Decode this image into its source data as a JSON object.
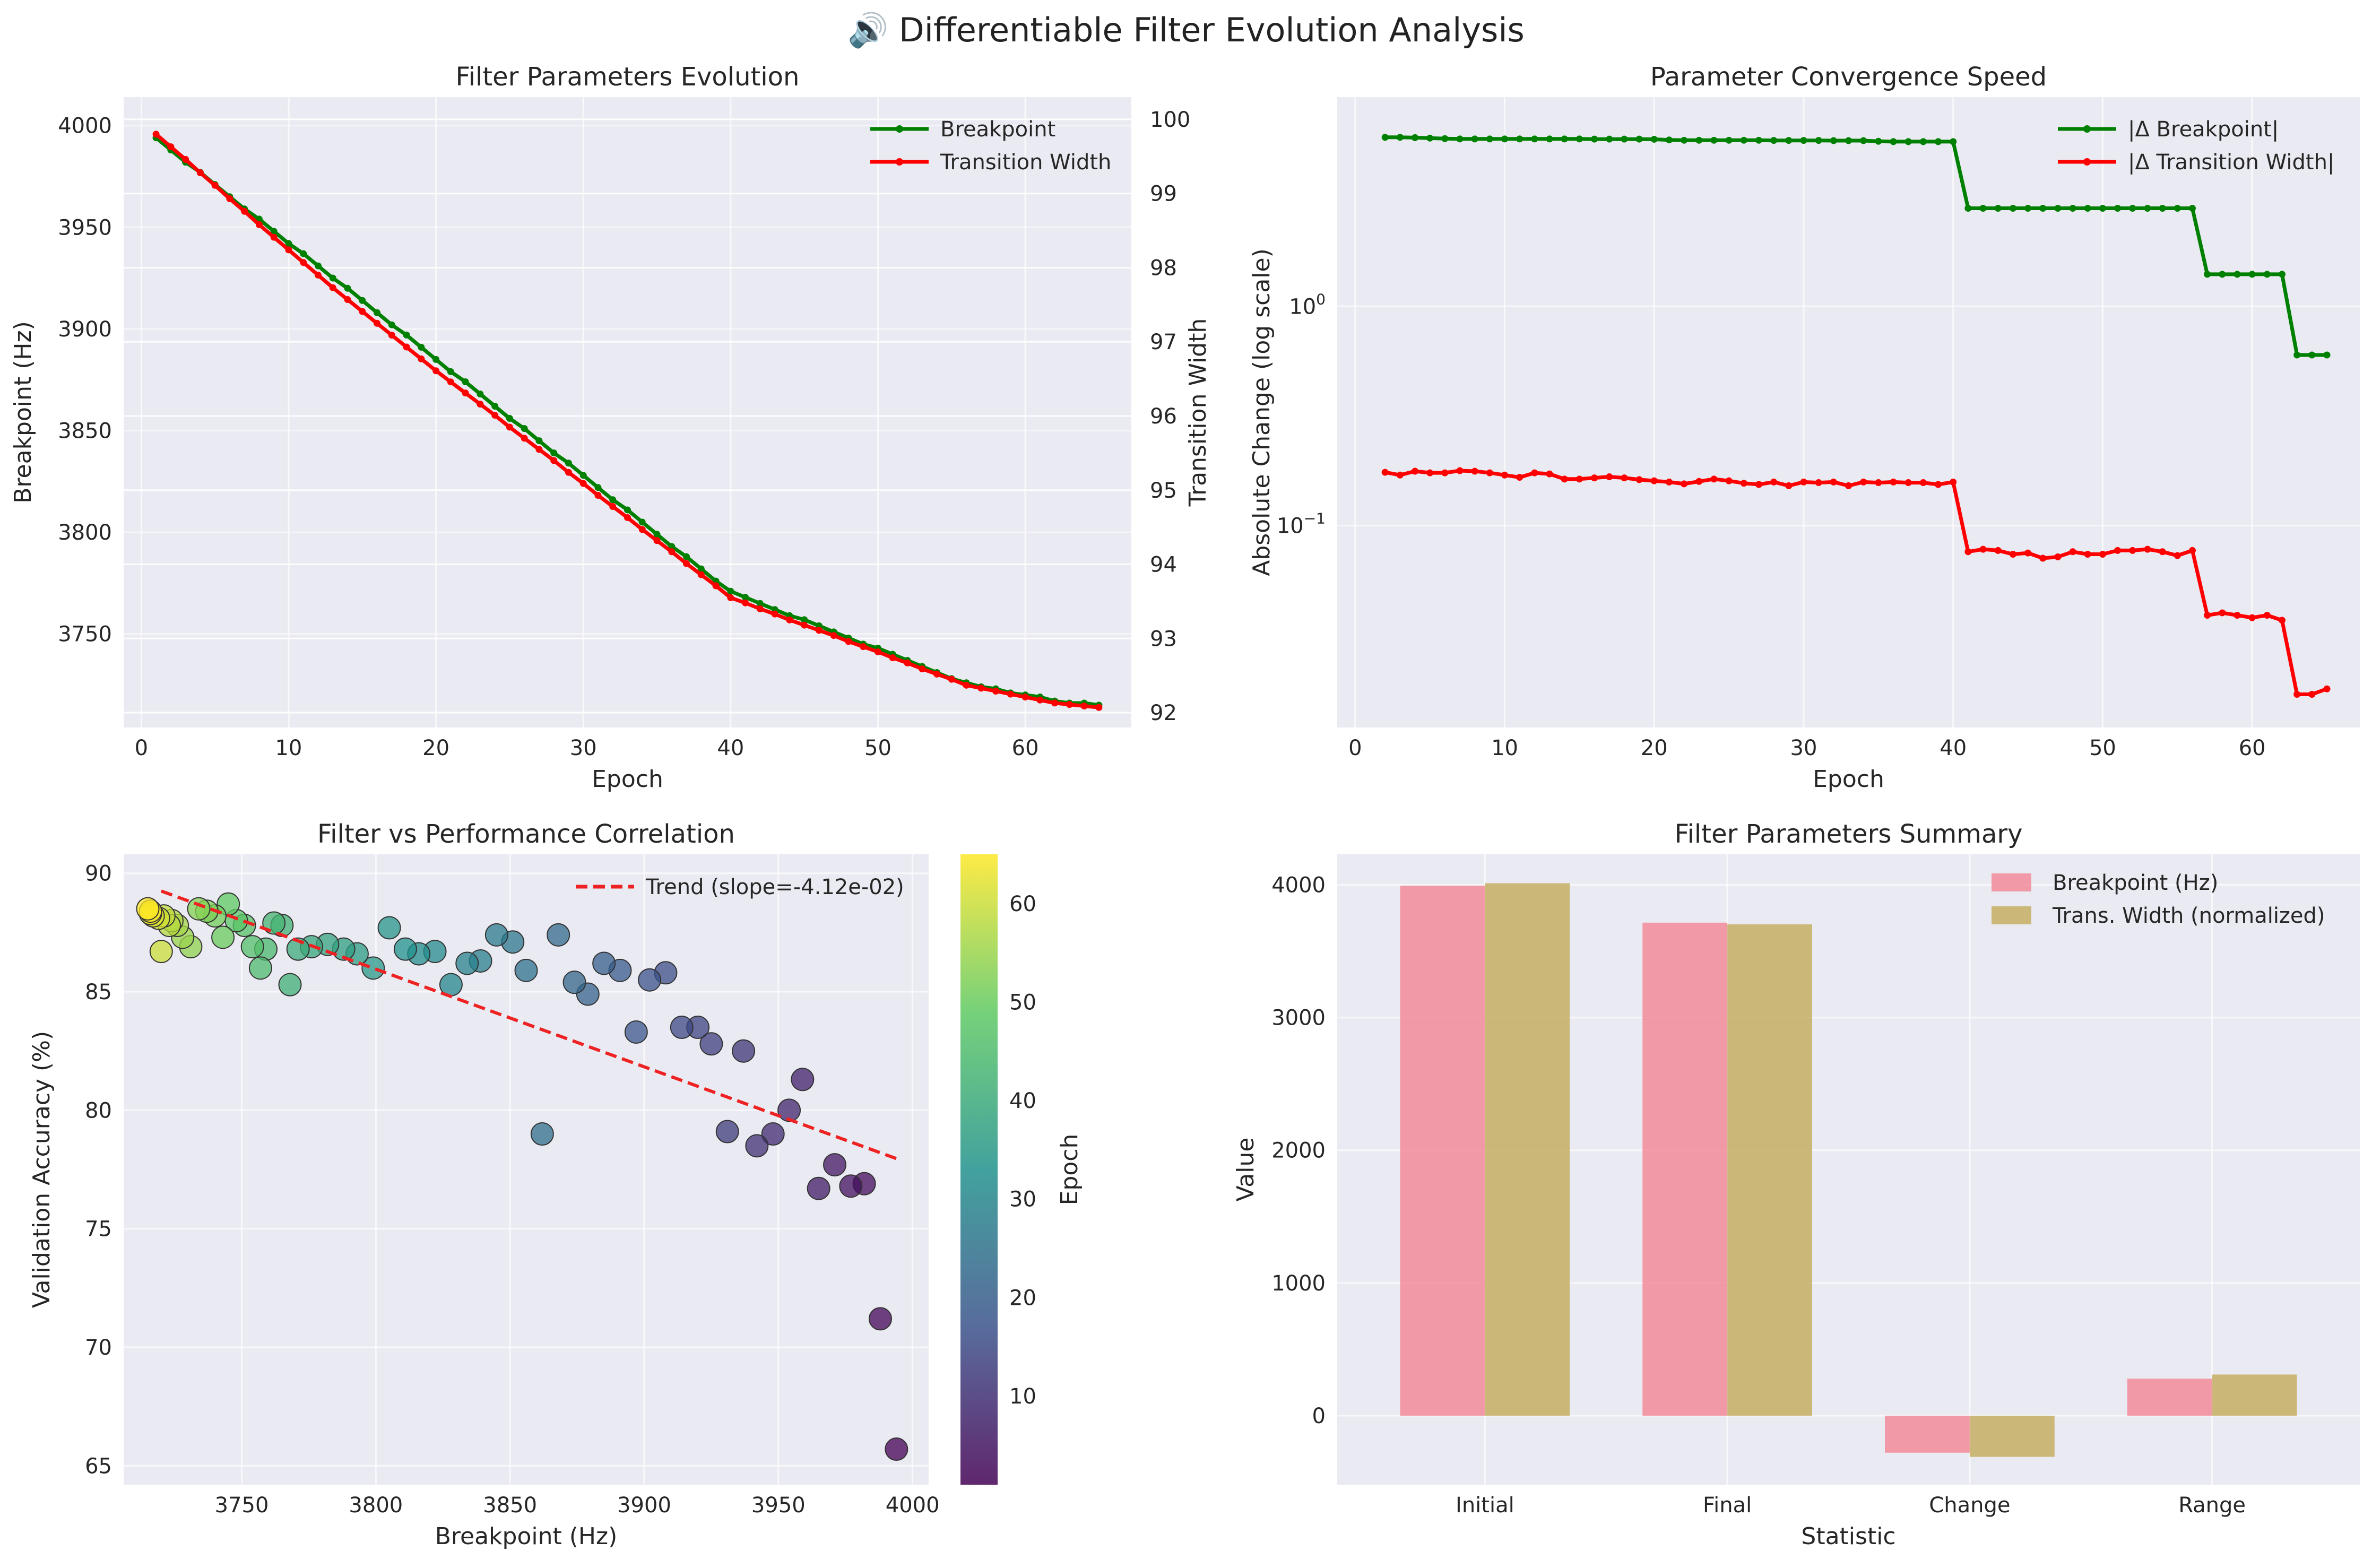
{
  "figure": {
    "title": "🔊 Differentiable Filter Evolution Analysis"
  },
  "chart_data": [
    {
      "id": "evolution",
      "type": "line",
      "title": "Filter Parameters Evolution",
      "xlabel": "Epoch",
      "ylabel": "Breakpoint (Hz)",
      "ylabel_right": "Transition Width",
      "xlim": [
        -1.2,
        67.2
      ],
      "ylim": [
        3704,
        4014
      ],
      "ylim_right": [
        91.8,
        100.3
      ],
      "xticks": [
        0,
        10,
        20,
        30,
        40,
        50,
        60
      ],
      "yticks": [
        3750,
        3800,
        3850,
        3900,
        3950,
        4000
      ],
      "yticks_right": [
        92,
        93,
        94,
        95,
        96,
        97,
        98,
        99,
        100
      ],
      "grid": true,
      "legend": "top-right",
      "series": [
        {
          "name": "Breakpoint",
          "axis": "left",
          "color": "#008000",
          "x": [
            1,
            2,
            3,
            4,
            5,
            6,
            7,
            8,
            9,
            10,
            11,
            12,
            13,
            14,
            15,
            16,
            17,
            18,
            19,
            20,
            21,
            22,
            23,
            24,
            25,
            26,
            27,
            28,
            29,
            30,
            31,
            32,
            33,
            34,
            35,
            36,
            37,
            38,
            39,
            40,
            41,
            42,
            43,
            44,
            45,
            46,
            47,
            48,
            49,
            50,
            51,
            52,
            53,
            54,
            55,
            56,
            57,
            58,
            59,
            60,
            61,
            62,
            63,
            64,
            65
          ],
          "values": [
            3994,
            3988,
            3982,
            3977,
            3971,
            3965,
            3959,
            3954,
            3948,
            3942,
            3937,
            3931,
            3925,
            3920,
            3914,
            3908,
            3902,
            3897,
            3891,
            3885,
            3879,
            3874,
            3868,
            3862,
            3856,
            3851,
            3845,
            3839,
            3834,
            3828,
            3822,
            3816,
            3811,
            3805,
            3799,
            3793,
            3788,
            3782,
            3776,
            3771,
            3768,
            3765,
            3762,
            3759,
            3757,
            3754,
            3751,
            3748,
            3745,
            3743,
            3740,
            3737,
            3734,
            3731,
            3728,
            3726,
            3724,
            3723,
            3721,
            3720,
            3719,
            3717,
            3716,
            3716,
            3715
          ]
        },
        {
          "name": "Transition Width",
          "axis": "right",
          "color": "#ff0000",
          "x": [
            1,
            2,
            3,
            4,
            5,
            6,
            7,
            8,
            9,
            10,
            11,
            12,
            13,
            14,
            15,
            16,
            17,
            18,
            19,
            20,
            21,
            22,
            23,
            24,
            25,
            26,
            27,
            28,
            29,
            30,
            31,
            32,
            33,
            34,
            35,
            36,
            37,
            38,
            39,
            40,
            41,
            42,
            43,
            44,
            45,
            46,
            47,
            48,
            49,
            50,
            51,
            52,
            53,
            54,
            55,
            56,
            57,
            58,
            59,
            60,
            61,
            62,
            63,
            64,
            65
          ],
          "values": [
            99.8,
            99.63,
            99.46,
            99.28,
            99.11,
            98.93,
            98.76,
            98.58,
            98.41,
            98.24,
            98.07,
            97.9,
            97.73,
            97.57,
            97.41,
            97.25,
            97.09,
            96.93,
            96.77,
            96.61,
            96.46,
            96.31,
            96.16,
            96.01,
            95.85,
            95.7,
            95.55,
            95.4,
            95.24,
            95.09,
            94.93,
            94.78,
            94.63,
            94.47,
            94.32,
            94.17,
            94.01,
            93.86,
            93.71,
            93.55,
            93.48,
            93.4,
            93.33,
            93.25,
            93.18,
            93.11,
            93.04,
            92.96,
            92.89,
            92.82,
            92.74,
            92.67,
            92.59,
            92.52,
            92.45,
            92.37,
            92.33,
            92.29,
            92.25,
            92.21,
            92.17,
            92.13,
            92.11,
            92.09,
            92.07
          ]
        }
      ]
    },
    {
      "id": "convergence",
      "type": "line",
      "title": "Parameter Convergence Speed",
      "xlabel": "Epoch",
      "ylabel": "Absolute Change (log scale)",
      "yscale": "log",
      "xlim": [
        -1.2,
        67.2
      ],
      "ylim": [
        0.012,
        9
      ],
      "xticks": [
        0,
        10,
        20,
        30,
        40,
        50,
        60
      ],
      "yticks": [
        {
          "value": 1,
          "base": "10",
          "exp": "0"
        },
        {
          "value": 0.1,
          "base": "10",
          "exp": "−1"
        }
      ],
      "grid": true,
      "legend": "top-right",
      "series": [
        {
          "name": "|Δ Breakpoint|",
          "color": "#008000",
          "x": [
            2,
            3,
            4,
            5,
            6,
            7,
            8,
            9,
            10,
            11,
            12,
            13,
            14,
            15,
            16,
            17,
            18,
            19,
            20,
            21,
            22,
            23,
            24,
            25,
            26,
            27,
            28,
            29,
            30,
            31,
            32,
            33,
            34,
            35,
            36,
            37,
            38,
            39,
            40,
            41,
            42,
            43,
            44,
            45,
            46,
            47,
            48,
            49,
            50,
            51,
            52,
            53,
            54,
            55,
            56,
            57,
            58,
            59,
            60,
            61,
            62,
            63,
            64,
            65
          ],
          "values": [
            5.9,
            5.9,
            5.88,
            5.85,
            5.82,
            5.8,
            5.8,
            5.8,
            5.8,
            5.8,
            5.8,
            5.8,
            5.8,
            5.8,
            5.79,
            5.79,
            5.79,
            5.79,
            5.78,
            5.74,
            5.72,
            5.72,
            5.72,
            5.72,
            5.72,
            5.72,
            5.71,
            5.71,
            5.71,
            5.71,
            5.7,
            5.7,
            5.7,
            5.66,
            5.64,
            5.64,
            5.64,
            5.64,
            5.64,
            2.8,
            2.8,
            2.8,
            2.8,
            2.8,
            2.8,
            2.8,
            2.8,
            2.8,
            2.8,
            2.8,
            2.8,
            2.8,
            2.8,
            2.8,
            2.8,
            1.4,
            1.4,
            1.4,
            1.4,
            1.4,
            1.4,
            0.6,
            0.6,
            0.6
          ]
        },
        {
          "name": "|Δ Transition Width|",
          "color": "#ff0000",
          "x": [
            2,
            3,
            4,
            5,
            6,
            7,
            8,
            9,
            10,
            11,
            12,
            13,
            14,
            15,
            16,
            17,
            18,
            19,
            20,
            21,
            22,
            23,
            24,
            25,
            26,
            27,
            28,
            29,
            30,
            31,
            32,
            33,
            34,
            35,
            36,
            37,
            38,
            39,
            40,
            41,
            42,
            43,
            44,
            45,
            46,
            47,
            48,
            49,
            50,
            51,
            52,
            53,
            54,
            55,
            56,
            57,
            58,
            59,
            60,
            61,
            62,
            63,
            64,
            65
          ],
          "values": [
            0.175,
            0.17,
            0.177,
            0.174,
            0.174,
            0.178,
            0.177,
            0.174,
            0.17,
            0.166,
            0.174,
            0.172,
            0.163,
            0.163,
            0.165,
            0.167,
            0.165,
            0.162,
            0.16,
            0.158,
            0.155,
            0.159,
            0.163,
            0.16,
            0.156,
            0.154,
            0.158,
            0.152,
            0.158,
            0.157,
            0.158,
            0.152,
            0.158,
            0.157,
            0.158,
            0.157,
            0.157,
            0.154,
            0.158,
            0.076,
            0.078,
            0.077,
            0.074,
            0.075,
            0.071,
            0.072,
            0.076,
            0.074,
            0.074,
            0.077,
            0.077,
            0.078,
            0.076,
            0.073,
            0.077,
            0.039,
            0.04,
            0.039,
            0.038,
            0.039,
            0.037,
            0.017,
            0.017,
            0.018
          ]
        }
      ]
    },
    {
      "id": "correlation",
      "type": "scatter",
      "title": "Filter vs Performance Correlation",
      "xlabel": "Breakpoint (Hz)",
      "ylabel": "Validation Accuracy (%)",
      "xlim": [
        3706,
        4006
      ],
      "ylim": [
        64.2,
        90.8
      ],
      "xticks": [
        3750,
        3800,
        3850,
        3900,
        3950,
        4000
      ],
      "yticks": [
        65,
        70,
        75,
        80,
        85,
        90
      ],
      "grid": true,
      "legend": "top-right",
      "colormap": "viridis",
      "colorbar": {
        "label": "Epoch",
        "range": [
          1,
          65
        ],
        "ticks": [
          10,
          20,
          30,
          40,
          50,
          60
        ]
      },
      "trend": {
        "name": "Trend (slope=-4.12e-02)",
        "color": "#ee2222",
        "x": [
          3720,
          3994
        ],
        "y": [
          89.25,
          77.96
        ]
      },
      "points": [
        {
          "x": 3994,
          "y": 65.7,
          "epoch": 1
        },
        {
          "x": 3988,
          "y": 71.2,
          "epoch": 2
        },
        {
          "x": 3982,
          "y": 76.9,
          "epoch": 3
        },
        {
          "x": 3977,
          "y": 76.8,
          "epoch": 4
        },
        {
          "x": 3971,
          "y": 77.7,
          "epoch": 5
        },
        {
          "x": 3965,
          "y": 76.7,
          "epoch": 6
        },
        {
          "x": 3959,
          "y": 81.3,
          "epoch": 7
        },
        {
          "x": 3954,
          "y": 80.0,
          "epoch": 8
        },
        {
          "x": 3948,
          "y": 79.0,
          "epoch": 9
        },
        {
          "x": 3942,
          "y": 78.5,
          "epoch": 10
        },
        {
          "x": 3937,
          "y": 82.5,
          "epoch": 11
        },
        {
          "x": 3931,
          "y": 79.1,
          "epoch": 12
        },
        {
          "x": 3925,
          "y": 82.8,
          "epoch": 13
        },
        {
          "x": 3920,
          "y": 83.5,
          "epoch": 14
        },
        {
          "x": 3914,
          "y": 83.5,
          "epoch": 15
        },
        {
          "x": 3908,
          "y": 85.8,
          "epoch": 16
        },
        {
          "x": 3902,
          "y": 85.5,
          "epoch": 17
        },
        {
          "x": 3897,
          "y": 83.3,
          "epoch": 18
        },
        {
          "x": 3891,
          "y": 85.9,
          "epoch": 19
        },
        {
          "x": 3885,
          "y": 86.2,
          "epoch": 20
        },
        {
          "x": 3879,
          "y": 84.9,
          "epoch": 21
        },
        {
          "x": 3874,
          "y": 85.4,
          "epoch": 22
        },
        {
          "x": 3868,
          "y": 87.4,
          "epoch": 23
        },
        {
          "x": 3862,
          "y": 79.0,
          "epoch": 24
        },
        {
          "x": 3856,
          "y": 85.9,
          "epoch": 25
        },
        {
          "x": 3851,
          "y": 87.1,
          "epoch": 26
        },
        {
          "x": 3845,
          "y": 87.4,
          "epoch": 27
        },
        {
          "x": 3839,
          "y": 86.3,
          "epoch": 28
        },
        {
          "x": 3834,
          "y": 86.2,
          "epoch": 29
        },
        {
          "x": 3828,
          "y": 85.3,
          "epoch": 30
        },
        {
          "x": 3822,
          "y": 86.7,
          "epoch": 31
        },
        {
          "x": 3816,
          "y": 86.6,
          "epoch": 32
        },
        {
          "x": 3811,
          "y": 86.8,
          "epoch": 33
        },
        {
          "x": 3805,
          "y": 87.7,
          "epoch": 34
        },
        {
          "x": 3799,
          "y": 86.0,
          "epoch": 35
        },
        {
          "x": 3793,
          "y": 86.6,
          "epoch": 36
        },
        {
          "x": 3788,
          "y": 86.8,
          "epoch": 37
        },
        {
          "x": 3782,
          "y": 87.0,
          "epoch": 38
        },
        {
          "x": 3776,
          "y": 86.9,
          "epoch": 39
        },
        {
          "x": 3771,
          "y": 86.8,
          "epoch": 40
        },
        {
          "x": 3768,
          "y": 85.3,
          "epoch": 41
        },
        {
          "x": 3765,
          "y": 87.8,
          "epoch": 42
        },
        {
          "x": 3762,
          "y": 87.9,
          "epoch": 43
        },
        {
          "x": 3759,
          "y": 86.8,
          "epoch": 44
        },
        {
          "x": 3757,
          "y": 86.0,
          "epoch": 45
        },
        {
          "x": 3754,
          "y": 86.9,
          "epoch": 46
        },
        {
          "x": 3751,
          "y": 87.8,
          "epoch": 47
        },
        {
          "x": 3748,
          "y": 88.0,
          "epoch": 48
        },
        {
          "x": 3745,
          "y": 88.7,
          "epoch": 49
        },
        {
          "x": 3743,
          "y": 87.3,
          "epoch": 50
        },
        {
          "x": 3740,
          "y": 88.2,
          "epoch": 51
        },
        {
          "x": 3737,
          "y": 88.4,
          "epoch": 52
        },
        {
          "x": 3734,
          "y": 88.5,
          "epoch": 53
        },
        {
          "x": 3731,
          "y": 86.9,
          "epoch": 54
        },
        {
          "x": 3728,
          "y": 87.3,
          "epoch": 55
        },
        {
          "x": 3726,
          "y": 87.8,
          "epoch": 56
        },
        {
          "x": 3724,
          "y": 88.0,
          "epoch": 57
        },
        {
          "x": 3723,
          "y": 87.8,
          "epoch": 58
        },
        {
          "x": 3721,
          "y": 88.2,
          "epoch": 59
        },
        {
          "x": 3720,
          "y": 86.7,
          "epoch": 60
        },
        {
          "x": 3719,
          "y": 88.1,
          "epoch": 61
        },
        {
          "x": 3717,
          "y": 88.2,
          "epoch": 62
        },
        {
          "x": 3716,
          "y": 88.3,
          "epoch": 63
        },
        {
          "x": 3716,
          "y": 88.4,
          "epoch": 64
        },
        {
          "x": 3715,
          "y": 88.5,
          "epoch": 65
        }
      ]
    },
    {
      "id": "summary",
      "type": "bar",
      "title": "Filter Parameters Summary",
      "xlabel": "Statistic",
      "ylabel": "Value",
      "ylim": [
        -520,
        4230
      ],
      "yticks": [
        0,
        1000,
        2000,
        3000,
        4000
      ],
      "grid": true,
      "legend": "top-right",
      "categories": [
        "Initial",
        "Final",
        "Change",
        "Range"
      ],
      "series": [
        {
          "name": "Breakpoint (Hz)",
          "color": "#f3909f",
          "values": [
            3994,
            3715,
            -279,
            279
          ]
        },
        {
          "name": "Trans. Width (normalized)",
          "color": "#c8b16a",
          "values": [
            4012,
            3702,
            -310,
            310
          ]
        }
      ]
    }
  ]
}
